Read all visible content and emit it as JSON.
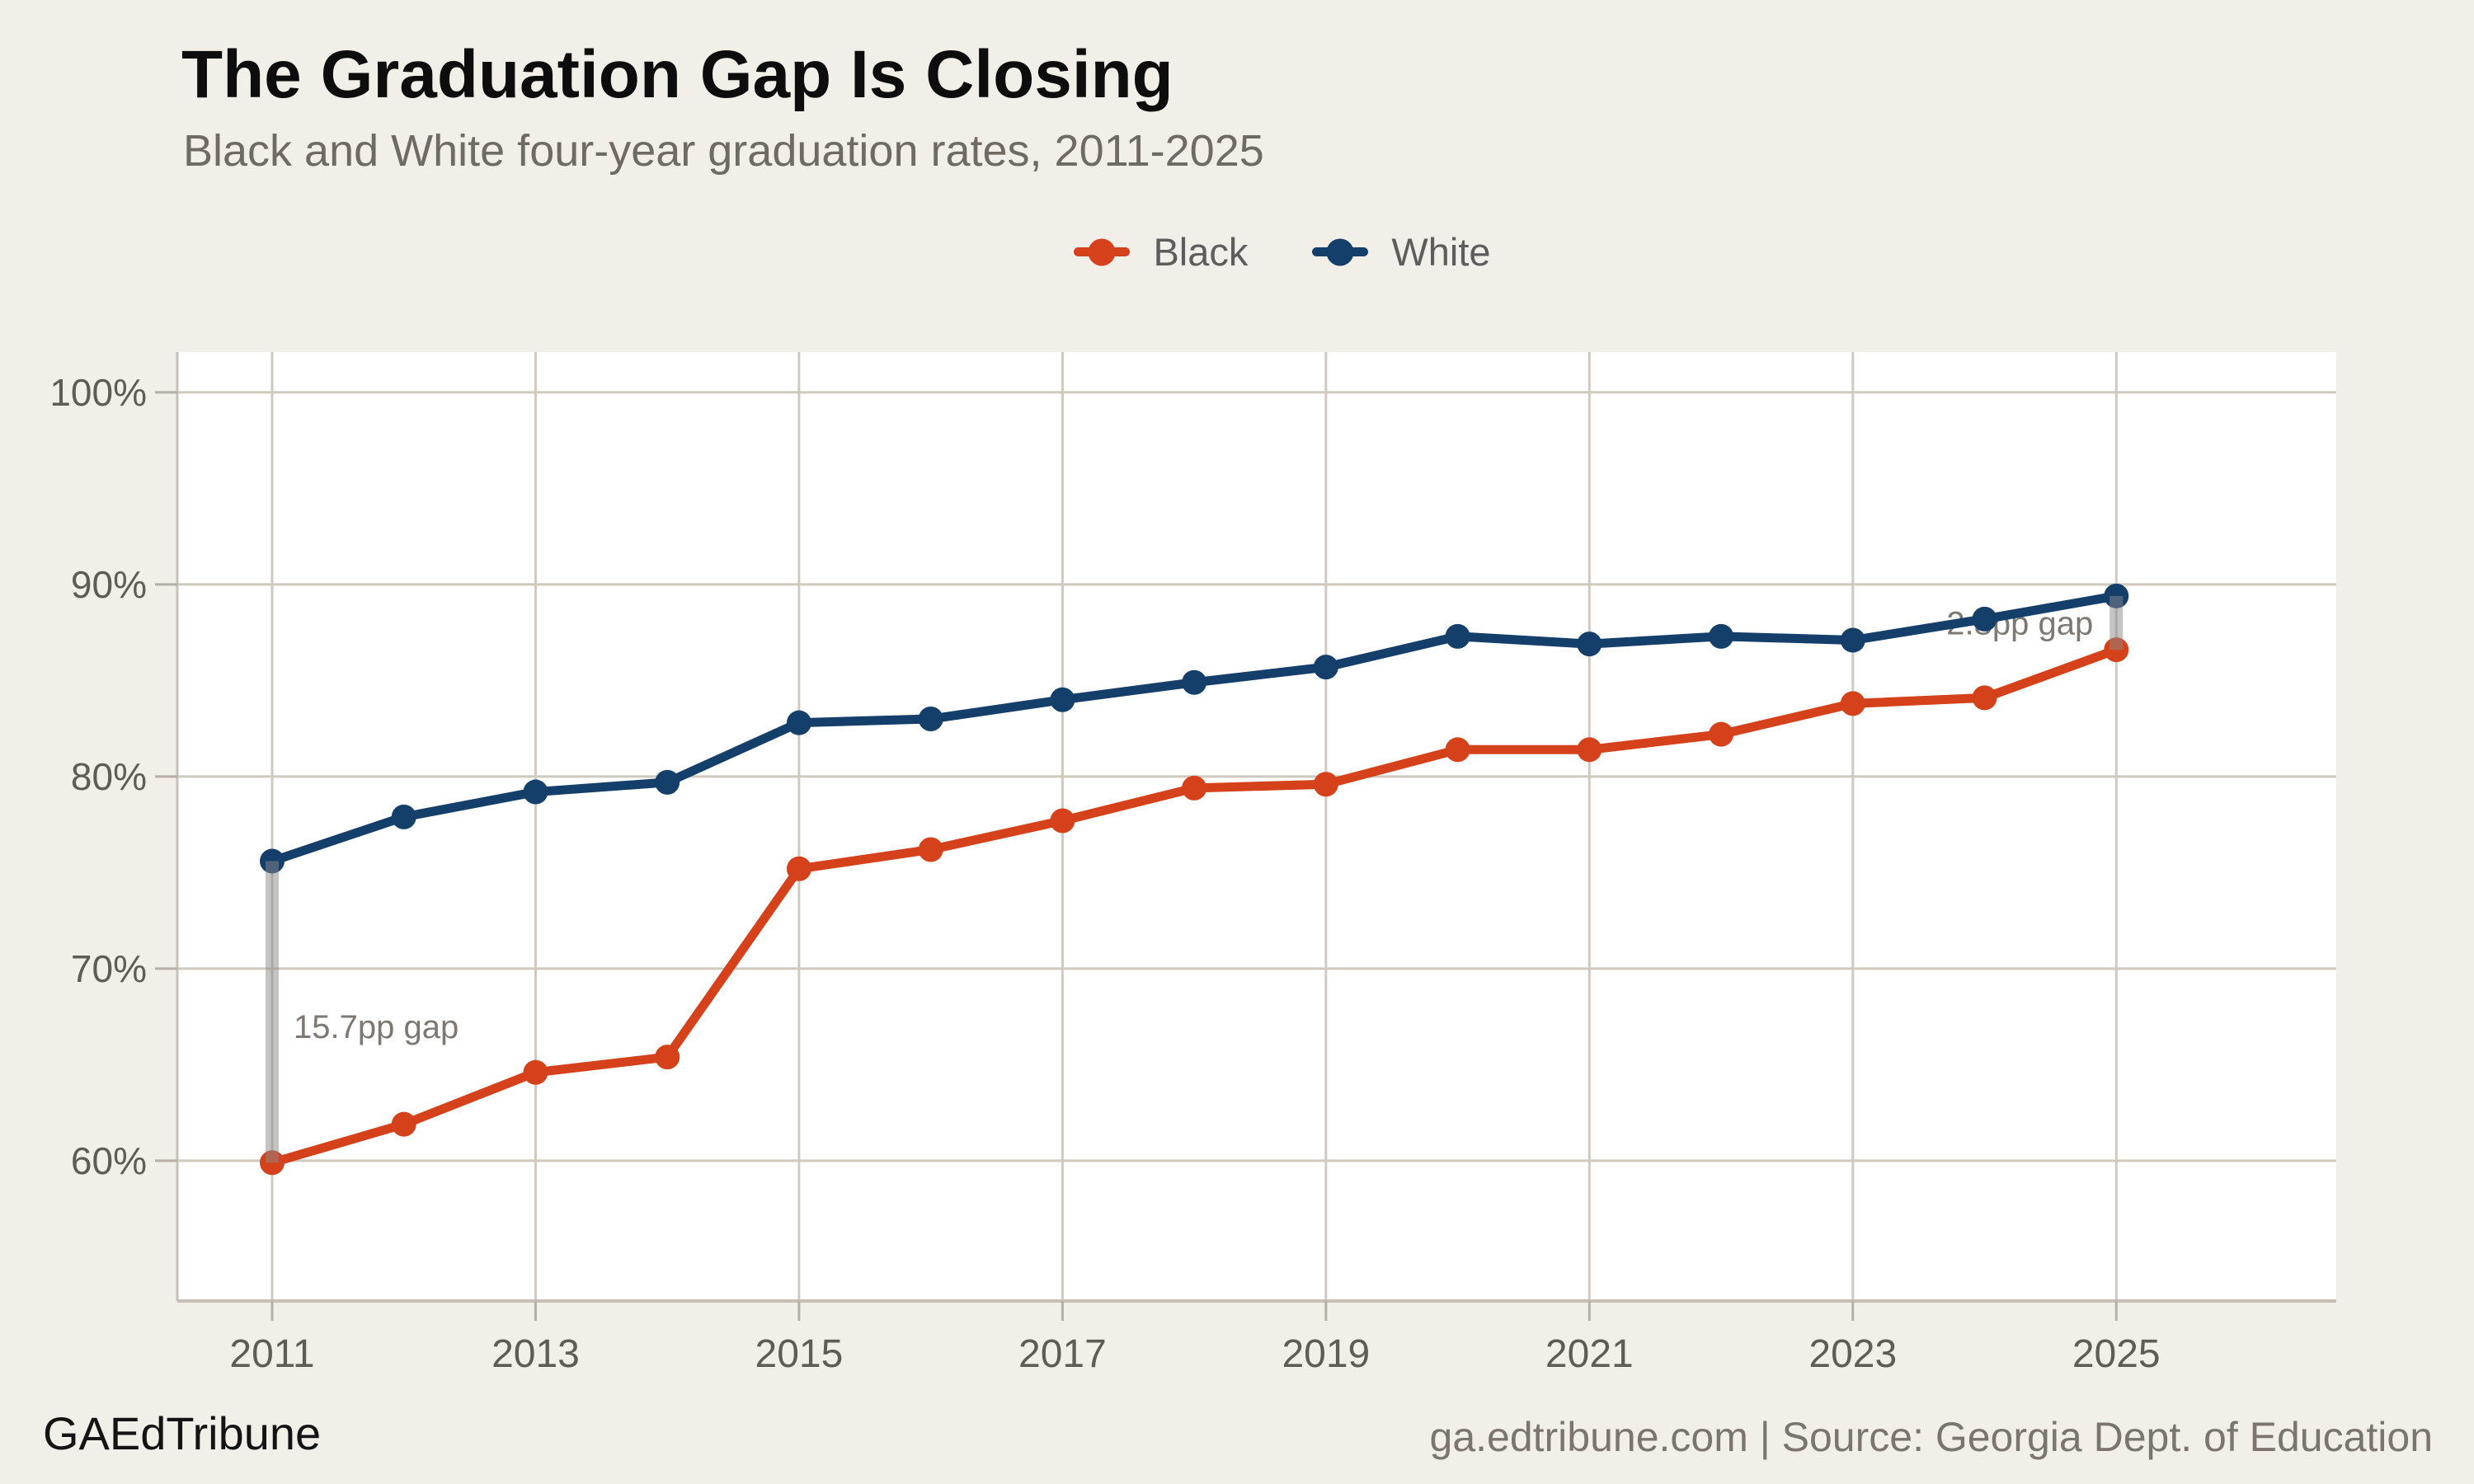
{
  "page": {
    "background_color": "#f2efe9",
    "title": "The Graduation Gap Is Closing",
    "subtitle": "Black and White four-year graduation rates, 2011-2025",
    "footer": {
      "brand": "GAEdTribune",
      "attribution": "ga.edtribune.com | Source: Georgia Dept. of Education"
    }
  },
  "legend": {
    "items": [
      {
        "label": "Black",
        "color": "#d5411b"
      },
      {
        "label": "White",
        "color": "#143f6b"
      }
    ]
  },
  "chart_data": {
    "type": "line",
    "title": "The Graduation Gap Is Closing",
    "subtitle": "Black and White four-year graduation rates, 2011-2025",
    "x": [
      2011,
      2012,
      2013,
      2014,
      2015,
      2016,
      2017,
      2018,
      2019,
      2020,
      2021,
      2022,
      2023,
      2024,
      2025
    ],
    "series": [
      {
        "name": "Black",
        "color": "#d5411b",
        "values": [
          59.9,
          61.9,
          64.6,
          65.4,
          75.2,
          76.2,
          77.7,
          79.4,
          79.6,
          81.4,
          81.4,
          82.2,
          83.8,
          84.1,
          86.6
        ]
      },
      {
        "name": "White",
        "color": "#143f6b",
        "values": [
          75.6,
          77.9,
          79.2,
          79.7,
          82.8,
          83.0,
          84.0,
          84.9,
          85.7,
          87.3,
          86.9,
          87.3,
          87.1,
          88.2,
          89.4
        ]
      }
    ],
    "xlabel": "",
    "ylabel": "",
    "yticks": [
      60,
      70,
      80,
      90,
      100
    ],
    "ytick_labels": [
      "60%",
      "70%",
      "80%",
      "90%",
      "100%"
    ],
    "xticks": [
      2011,
      2013,
      2015,
      2017,
      2019,
      2021,
      2023,
      2025
    ],
    "xtick_labels": [
      "2011",
      "2013",
      "2015",
      "2017",
      "2019",
      "2021",
      "2023",
      "2025"
    ],
    "ylim": [
      52.7,
      102.1
    ],
    "xlim": [
      2010.28,
      2026.67
    ],
    "grid": true,
    "plot_background": "#ffffff",
    "gridline_color": "#cfc9c0",
    "spine_color": "#c6c0b6",
    "tick_color": "#b5afa5",
    "tick_label_color": "#5f5b55",
    "line_width": 11,
    "marker_radius": 15,
    "legend_position": "top-center",
    "annotations": [
      {
        "text": "15.7pp gap",
        "year": 2011,
        "value": 67.0,
        "align": "left",
        "color": "#7d7872"
      },
      {
        "text": "2.8pp gap",
        "year": 2025,
        "value": 88.0,
        "align": "right",
        "color": "#7d7872"
      }
    ],
    "gap_bars": [
      {
        "year": 2011,
        "from_series": "White",
        "to_series": "Black",
        "gap_pp": 15.7
      },
      {
        "year": 2025,
        "from_series": "White",
        "to_series": "Black",
        "gap_pp": 2.8
      }
    ],
    "gap_bar_color": "#8a8a8a",
    "gap_bar_opacity": 0.5
  }
}
